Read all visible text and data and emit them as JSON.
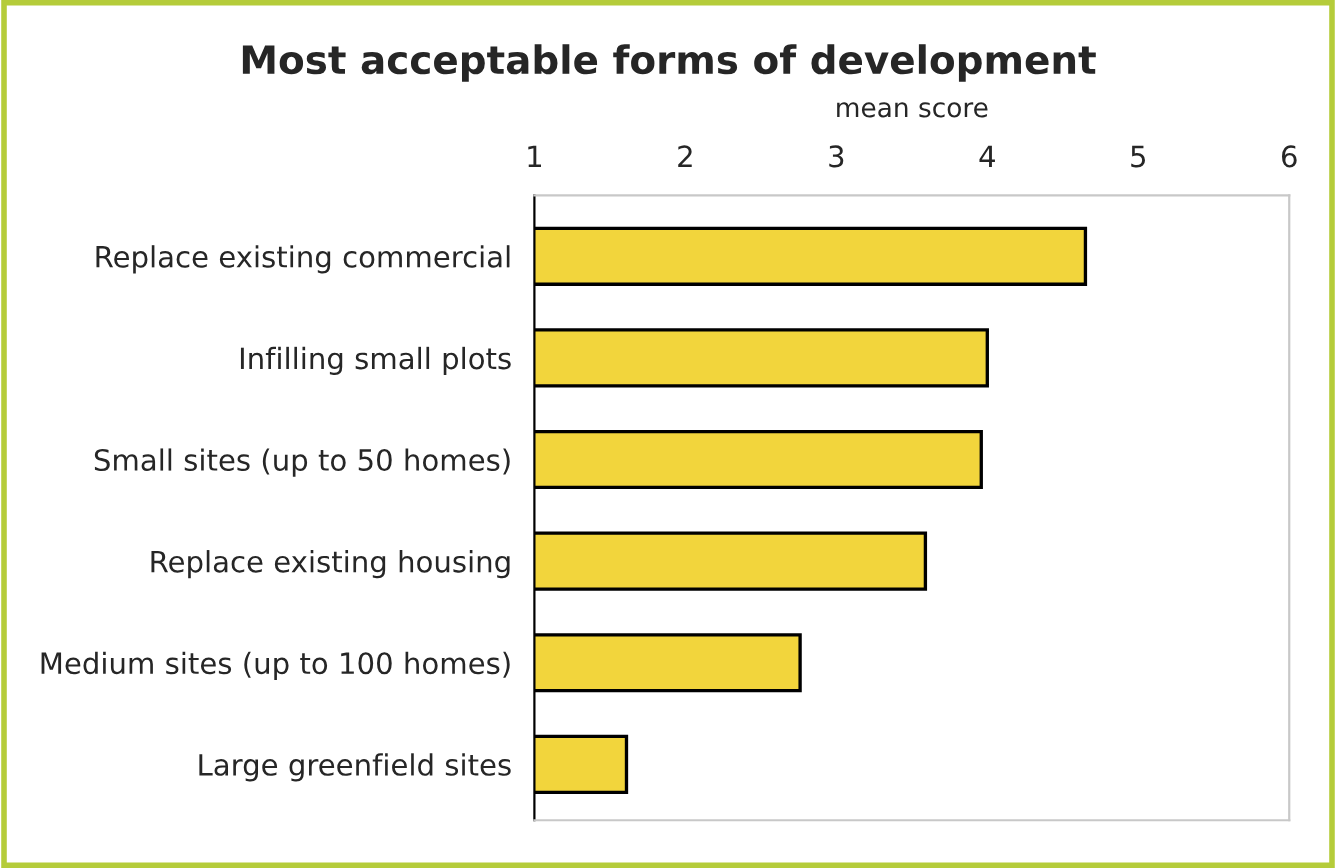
{
  "chart_data": {
    "type": "bar",
    "orientation": "horizontal",
    "title": "Most acceptable forms of development",
    "xlabel": "mean score",
    "categories": [
      "Replace existing commercial",
      "Infilling small plots",
      "Small sites (up to 50 homes)",
      "Replace existing housing",
      "Medium sites (up to 100 homes)",
      "Large greenfield sites"
    ],
    "values": [
      4.65,
      4.0,
      3.96,
      3.59,
      2.76,
      1.61
    ],
    "color": "#f2d53c",
    "xlim": [
      1,
      6
    ],
    "xticks": [
      1,
      2,
      3,
      4,
      5,
      6
    ],
    "grid": false,
    "legend": false
  }
}
